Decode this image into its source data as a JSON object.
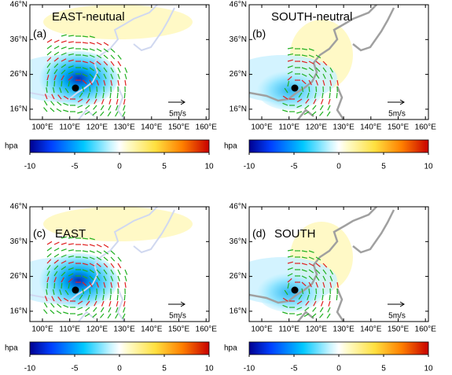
{
  "panels": [
    {
      "label": "(a)",
      "title": "EAST-neutual"
    },
    {
      "label": "(b)",
      "title": "SOUTH-neutral"
    },
    {
      "label": "(c)",
      "title": "EAST"
    },
    {
      "label": "(d)",
      "title": "SOUTH"
    }
  ],
  "lat_labels": [
    "46°N",
    "36°N",
    "26°N",
    "16°N"
  ],
  "lon_labels": [
    "100°E",
    "110°E",
    "120°E",
    "130°E",
    "140°E",
    "150°E",
    "160°E"
  ],
  "scale_label": "5m/s",
  "colorbar": {
    "unit": "hpa",
    "lim": [
      -10,
      10
    ],
    "ticks": [
      -10,
      -5,
      0,
      5,
      10
    ]
  }
}
